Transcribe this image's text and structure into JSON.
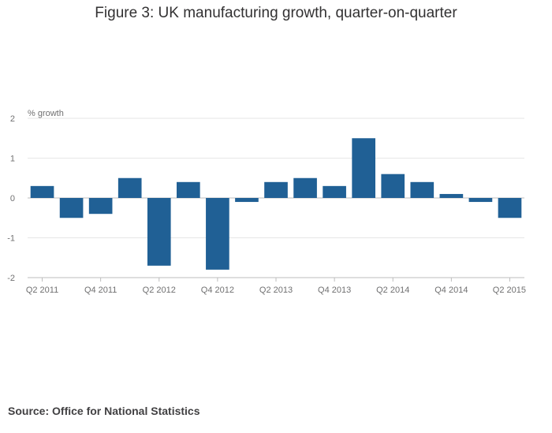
{
  "chart_data": {
    "type": "bar",
    "title": "Figure 3: UK manufacturing growth, quarter-on-quarter",
    "ylabel": "% growth",
    "xlabel": "",
    "ylim": [
      -2,
      2
    ],
    "yticks": [
      2,
      1,
      0,
      -1,
      -2
    ],
    "categories": [
      "Q2 2011",
      "Q3 2011",
      "Q4 2011",
      "Q1 2012",
      "Q2 2012",
      "Q3 2012",
      "Q4 2012",
      "Q1 2013",
      "Q2 2013",
      "Q3 2013",
      "Q4 2013",
      "Q1 2014",
      "Q2 2014",
      "Q3 2014",
      "Q4 2014",
      "Q1 2015",
      "Q2 2015"
    ],
    "tick_labels": [
      "Q2 2011",
      "",
      "Q4 2011",
      "",
      "Q2 2012",
      "",
      "Q4 2012",
      "",
      "Q2 2013",
      "",
      "Q4 2013",
      "",
      "Q2 2014",
      "",
      "Q4 2014",
      "",
      "Q2 2015"
    ],
    "values": [
      0.3,
      -0.5,
      -0.4,
      0.5,
      -1.7,
      0.4,
      -1.8,
      -0.1,
      0.4,
      0.5,
      0.3,
      1.5,
      0.6,
      0.4,
      0.1,
      -0.1,
      -0.5
    ],
    "bar_color": "#206095",
    "grid": true
  },
  "source": "Source: Office for National Statistics"
}
